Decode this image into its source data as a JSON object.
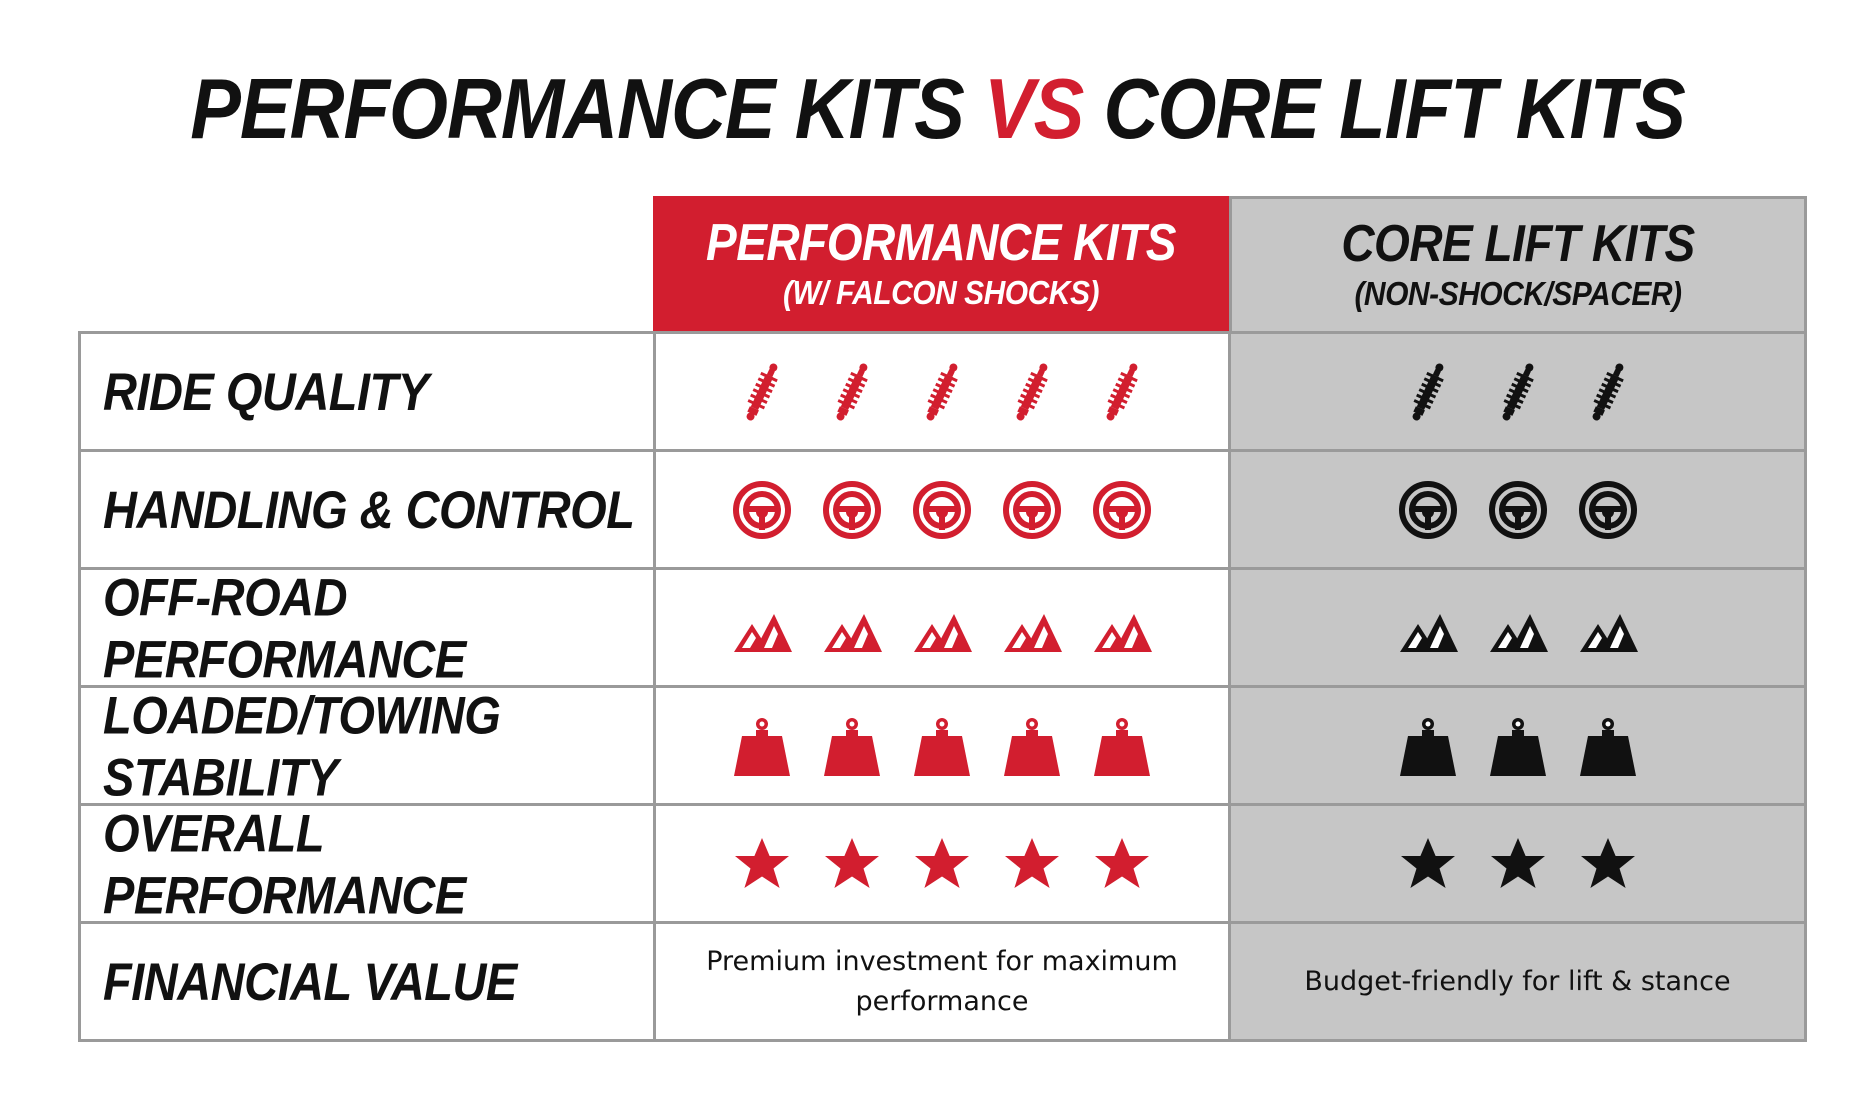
{
  "title": {
    "part1": "PERFORMANCE KITS",
    "vs": "VS",
    "part2": "CORE LIFT KITS"
  },
  "colors": {
    "accent": "#d21e2f",
    "grey": "#c6c6c6",
    "black": "#111111"
  },
  "columns": [
    {
      "title": "PERFORMANCE KITS",
      "subtitle": "(W/ FALCON SHOCKS)"
    },
    {
      "title": "CORE LIFT KITS",
      "subtitle": "(NON-SHOCK/SPACER)"
    }
  ],
  "rows": [
    {
      "label": "RIDE QUALITY",
      "icon": "shock-absorber-icon",
      "performance_rating": 5,
      "core_rating": 3
    },
    {
      "label": "HANDLING & CONTROL",
      "icon": "steering-wheel-icon",
      "performance_rating": 5,
      "core_rating": 3
    },
    {
      "label": "OFF-ROAD PERFORMANCE",
      "icon": "mountain-icon",
      "performance_rating": 5,
      "core_rating": 3
    },
    {
      "label": "LOADED/TOWING STABILITY",
      "icon": "weight-icon",
      "performance_rating": 5,
      "core_rating": 3
    },
    {
      "label": "OVERALL PERFORMANCE",
      "icon": "star-icon",
      "performance_rating": 5,
      "core_rating": 3
    },
    {
      "label": "FINANCIAL VALUE",
      "performance_text": "Premium investment for maximum performance",
      "core_text": "Budget-friendly for lift & stance"
    }
  ]
}
